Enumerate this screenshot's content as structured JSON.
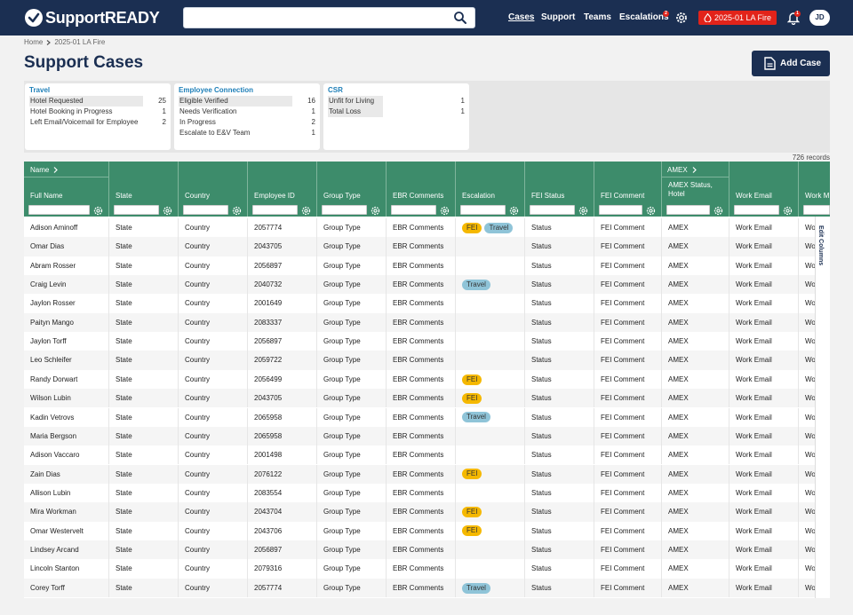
{
  "brand": {
    "name": "SupportREADY"
  },
  "search": {
    "placeholder": "",
    "value": ""
  },
  "nav": {
    "cases": "Cases",
    "support": "Support",
    "teams": "Teams",
    "escalations": "Escalations",
    "escalations_badge": "2",
    "event": "2025-01 LA Fire",
    "notifications_badge": "1",
    "avatar": "JD"
  },
  "breadcrumb": {
    "home": "Home",
    "current": "2025-01 LA Fire"
  },
  "page": {
    "title": "Support Cases",
    "add_case": "Add Case",
    "records": "726 records"
  },
  "summary": {
    "travel": {
      "title": "Travel",
      "rows": [
        {
          "label": "Hotel Requested",
          "count": "25"
        },
        {
          "label": "Hotel Booking in Progress",
          "count": "1"
        },
        {
          "label": "Left Email/Voicemail for Employee",
          "count": "2"
        }
      ]
    },
    "employee": {
      "title": "Employee Connection",
      "rows": [
        {
          "label": "Eligible Verified",
          "count": "16"
        },
        {
          "label": "Needs Verification",
          "count": "1"
        },
        {
          "label": "In Progress",
          "count": "2"
        },
        {
          "label": "Escalate to E&V Team",
          "count": "1"
        }
      ]
    },
    "csr": {
      "title": "CSR",
      "rows": [
        {
          "label": "Unfit for Living",
          "count": "1"
        },
        {
          "label": "Total Loss",
          "count": "1"
        }
      ]
    }
  },
  "table": {
    "group_name": "Name",
    "group_amex": "AMEX",
    "headers": {
      "full_name": "Full Name",
      "state": "State",
      "country": "Country",
      "employee_id": "Employee ID",
      "group_type": "Group Type",
      "ebr_comments": "EBR Comments",
      "escalation": "Escalation",
      "fei_status": "FEI Status",
      "fei_comment": "FEI Comment",
      "amex_status": "AMEX Status, Hotel",
      "work_email": "Work Email",
      "work_m": "Work M"
    },
    "edit_columns": "Edit Columns",
    "rows": [
      {
        "name": "Adison Aminoff",
        "state": "State",
        "country": "Country",
        "id": "2057774",
        "group": "Group Type",
        "ebr": "EBR Comments",
        "esc": [
          "FEI",
          "Travel"
        ],
        "fei_status": "Status",
        "fei_comment": "FEI Comment",
        "amex": "AMEX",
        "email": "Work Email",
        "wm": "Wo"
      },
      {
        "name": "Omar Dias",
        "state": "State",
        "country": "Country",
        "id": "2043705",
        "group": "Group Type",
        "ebr": "EBR Comments",
        "esc": [],
        "fei_status": "Status",
        "fei_comment": "FEI Comment",
        "amex": "AMEX",
        "email": "Work Email",
        "wm": "Wo"
      },
      {
        "name": "Abram Rosser",
        "state": "State",
        "country": "Country",
        "id": "2056897",
        "group": "Group Type",
        "ebr": "EBR Comments",
        "esc": [],
        "fei_status": "Status",
        "fei_comment": "FEI Comment",
        "amex": "AMEX",
        "email": "Work Email",
        "wm": "Wo"
      },
      {
        "name": "Craig Levin",
        "state": "State",
        "country": "Country",
        "id": "2040732",
        "group": "Group Type",
        "ebr": "EBR Comments",
        "esc": [
          "Travel"
        ],
        "fei_status": "Status",
        "fei_comment": "FEI Comment",
        "amex": "AMEX",
        "email": "Work Email",
        "wm": "Wo"
      },
      {
        "name": "Jaylon Rosser",
        "state": "State",
        "country": "Country",
        "id": "2001649",
        "group": "Group Type",
        "ebr": "EBR Comments",
        "esc": [],
        "fei_status": "Status",
        "fei_comment": "FEI Comment",
        "amex": "AMEX",
        "email": "Work Email",
        "wm": "Wo"
      },
      {
        "name": "Paityn Mango",
        "state": "State",
        "country": "Country",
        "id": "2083337",
        "group": "Group Type",
        "ebr": "EBR Comments",
        "esc": [],
        "fei_status": "Status",
        "fei_comment": "FEI Comment",
        "amex": "AMEX",
        "email": "Work Email",
        "wm": "Wo"
      },
      {
        "name": "Jaylon Torff",
        "state": "State",
        "country": "Country",
        "id": "2056897",
        "group": "Group Type",
        "ebr": "EBR Comments",
        "esc": [],
        "fei_status": "Status",
        "fei_comment": "FEI Comment",
        "amex": "AMEX",
        "email": "Work Email",
        "wm": "Wo"
      },
      {
        "name": "Leo Schleifer",
        "state": "State",
        "country": "Country",
        "id": "2059722",
        "group": "Group Type",
        "ebr": "EBR Comments",
        "esc": [],
        "fei_status": "Status",
        "fei_comment": "FEI Comment",
        "amex": "AMEX",
        "email": "Work Email",
        "wm": "Wo"
      },
      {
        "name": "Randy Dorwart",
        "state": "State",
        "country": "Country",
        "id": "2056499",
        "group": "Group Type",
        "ebr": "EBR Comments",
        "esc": [
          "FEI"
        ],
        "fei_status": "Status",
        "fei_comment": "FEI Comment",
        "amex": "AMEX",
        "email": "Work Email",
        "wm": "Wo"
      },
      {
        "name": "Wilson Lubin",
        "state": "State",
        "country": "Country",
        "id": "2043705",
        "group": "Group Type",
        "ebr": "EBR Comments",
        "esc": [
          "FEI"
        ],
        "fei_status": "Status",
        "fei_comment": "FEI Comment",
        "amex": "AMEX",
        "email": "Work Email",
        "wm": "Wo"
      },
      {
        "name": "Kadin Vetrovs",
        "state": "State",
        "country": "Country",
        "id": "2065958",
        "group": "Group Type",
        "ebr": "EBR Comments",
        "esc": [
          "Travel"
        ],
        "fei_status": "Status",
        "fei_comment": "FEI Comment",
        "amex": "AMEX",
        "email": "Work Email",
        "wm": "Wo"
      },
      {
        "name": "Maria Bergson",
        "state": "State",
        "country": "Country",
        "id": "2065958",
        "group": "Group Type",
        "ebr": "EBR Comments",
        "esc": [],
        "fei_status": "Status",
        "fei_comment": "FEI Comment",
        "amex": "AMEX",
        "email": "Work Email",
        "wm": "Wo"
      },
      {
        "name": "Adison Vaccaro",
        "state": "State",
        "country": "Country",
        "id": "2001498",
        "group": "Group Type",
        "ebr": "EBR Comments",
        "esc": [],
        "fei_status": "Status",
        "fei_comment": "FEI Comment",
        "amex": "AMEX",
        "email": "Work Email",
        "wm": "Wo"
      },
      {
        "name": "Zain Dias",
        "state": "State",
        "country": "Country",
        "id": "2076122",
        "group": "Group Type",
        "ebr": "EBR Comments",
        "esc": [
          "FEI"
        ],
        "fei_status": "Status",
        "fei_comment": "FEI Comment",
        "amex": "AMEX",
        "email": "Work Email",
        "wm": "Wo"
      },
      {
        "name": "Allison Lubin",
        "state": "State",
        "country": "Country",
        "id": "2083554",
        "group": "Group Type",
        "ebr": "EBR Comments",
        "esc": [],
        "fei_status": "Status",
        "fei_comment": "FEI Comment",
        "amex": "AMEX",
        "email": "Work Email",
        "wm": "Wo"
      },
      {
        "name": "Mira Workman",
        "state": "State",
        "country": "Country",
        "id": "2043704",
        "group": "Group Type",
        "ebr": "EBR Comments",
        "esc": [
          "FEI"
        ],
        "fei_status": "Status",
        "fei_comment": "FEI Comment",
        "amex": "AMEX",
        "email": "Work Email",
        "wm": "Wo"
      },
      {
        "name": "Omar Westervelt",
        "state": "State",
        "country": "Country",
        "id": "2043706",
        "group": "Group Type",
        "ebr": "EBR Comments",
        "esc": [
          "FEI"
        ],
        "fei_status": "Status",
        "fei_comment": "FEI Comment",
        "amex": "AMEX",
        "email": "Work Email",
        "wm": "Wo"
      },
      {
        "name": "Lindsey Arcand",
        "state": "State",
        "country": "Country",
        "id": "2056897",
        "group": "Group Type",
        "ebr": "EBR Comments",
        "esc": [],
        "fei_status": "Status",
        "fei_comment": "FEI Comment",
        "amex": "AMEX",
        "email": "Work Email",
        "wm": "Wo"
      },
      {
        "name": "Lincoln Stanton",
        "state": "State",
        "country": "Country",
        "id": "2079316",
        "group": "Group Type",
        "ebr": "EBR Comments",
        "esc": [],
        "fei_status": "Status",
        "fei_comment": "FEI Comment",
        "amex": "AMEX",
        "email": "Work Email",
        "wm": "Wo"
      },
      {
        "name": "Corey Torff",
        "state": "State",
        "country": "Country",
        "id": "2057774",
        "group": "Group Type",
        "ebr": "EBR Comments",
        "esc": [
          "Travel"
        ],
        "fei_status": "Status",
        "fei_comment": "FEI Comment",
        "amex": "AMEX",
        "email": "Work Email",
        "wm": "Wo"
      }
    ]
  },
  "colors": {
    "nav": "#1b2f52",
    "table_header": "#3d8c6b",
    "event_red": "#e2231a",
    "fei_pill": "#f5b800",
    "travel_pill": "#8fc4d8",
    "card_title": "#1e7fb8"
  }
}
